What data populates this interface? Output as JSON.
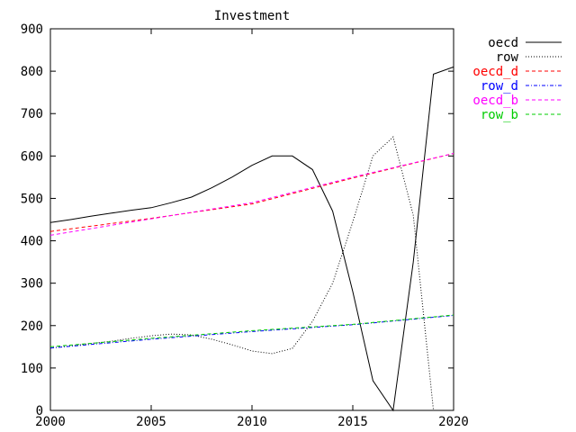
{
  "chart_data": {
    "type": "line",
    "title": "Investment",
    "xlabel": "",
    "ylabel": "",
    "xlim": [
      2000,
      2020
    ],
    "ylim": [
      0,
      900
    ],
    "x_ticks": [
      2000,
      2005,
      2010,
      2015,
      2020
    ],
    "y_ticks": [
      0,
      100,
      200,
      300,
      400,
      500,
      600,
      700,
      800,
      900
    ],
    "grid": false,
    "legend_position": "top-right-outside",
    "series": [
      {
        "name": "oecd",
        "color": "#000000",
        "dash": "solid",
        "x": [
          2000,
          2001,
          2002,
          2003,
          2004,
          2005,
          2006,
          2007,
          2008,
          2009,
          2010,
          2011,
          2012,
          2013,
          2014,
          2015,
          2016,
          2017,
          2018,
          2019,
          2020
        ],
        "y": [
          443,
          450,
          458,
          465,
          472,
          478,
          490,
          503,
          525,
          550,
          578,
          600,
          600,
          568,
          470,
          280,
          70,
          0,
          350,
          793,
          810
        ]
      },
      {
        "name": "row",
        "color": "#000000",
        "dash": "dotted",
        "x": [
          2000,
          2001,
          2002,
          2003,
          2004,
          2005,
          2006,
          2007,
          2008,
          2009,
          2010,
          2011,
          2012,
          2013,
          2014,
          2015,
          2016,
          2017,
          2018,
          2019
        ],
        "y": [
          147,
          152,
          158,
          163,
          170,
          176,
          180,
          178,
          168,
          155,
          140,
          134,
          146,
          210,
          300,
          445,
          600,
          645,
          460,
          0
        ]
      },
      {
        "name": "oecd_d",
        "color": "#ff0000",
        "dash": "dashed",
        "x": [
          2000,
          2005,
          2010,
          2015,
          2020
        ],
        "y": [
          422,
          453,
          487,
          548,
          606
        ]
      },
      {
        "name": "row_d",
        "color": "#0000ff",
        "dash": "dashdot",
        "x": [
          2000,
          2005,
          2010,
          2015,
          2020
        ],
        "y": [
          147,
          168,
          186,
          202,
          224
        ]
      },
      {
        "name": "oecd_b",
        "color": "#ff00ff",
        "dash": "dashed",
        "x": [
          2000,
          2005,
          2010,
          2015,
          2020
        ],
        "y": [
          413,
          452,
          490,
          550,
          606
        ]
      },
      {
        "name": "row_b",
        "color": "#00cc00",
        "dash": "dashed",
        "x": [
          2000,
          2005,
          2010,
          2015,
          2020
        ],
        "y": [
          150,
          170,
          188,
          203,
          225
        ]
      }
    ]
  }
}
